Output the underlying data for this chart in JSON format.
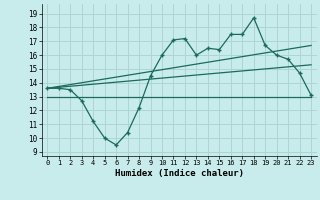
{
  "xlabel": "Humidex (Indice chaleur)",
  "background_color": "#c8ecec",
  "grid_color": "#aed4d4",
  "line_color": "#1a6b5a",
  "xlim": [
    -0.5,
    23.5
  ],
  "ylim": [
    8.7,
    19.7
  ],
  "yticks": [
    9,
    10,
    11,
    12,
    13,
    14,
    15,
    16,
    17,
    18,
    19
  ],
  "xticks": [
    0,
    1,
    2,
    3,
    4,
    5,
    6,
    7,
    8,
    9,
    10,
    11,
    12,
    13,
    14,
    15,
    16,
    17,
    18,
    19,
    20,
    21,
    22,
    23
  ],
  "zigzag_x": [
    0,
    1,
    2,
    3,
    4,
    5,
    6,
    7,
    8,
    9,
    10,
    11,
    12,
    13,
    14,
    15,
    16,
    17,
    18,
    19,
    20,
    21,
    22,
    23
  ],
  "zigzag_y": [
    13.6,
    13.6,
    13.5,
    12.7,
    11.2,
    10.0,
    9.5,
    10.4,
    12.2,
    14.5,
    16.0,
    17.1,
    17.2,
    16.0,
    16.5,
    16.4,
    17.5,
    17.5,
    18.7,
    16.7,
    16.0,
    15.7,
    14.7,
    13.1
  ],
  "line1_x": [
    0,
    23
  ],
  "line1_y": [
    13.6,
    16.7
  ],
  "line2_x": [
    0,
    23
  ],
  "line2_y": [
    13.6,
    15.3
  ],
  "line3_x": [
    0,
    23
  ],
  "line3_y": [
    13.0,
    13.0
  ]
}
